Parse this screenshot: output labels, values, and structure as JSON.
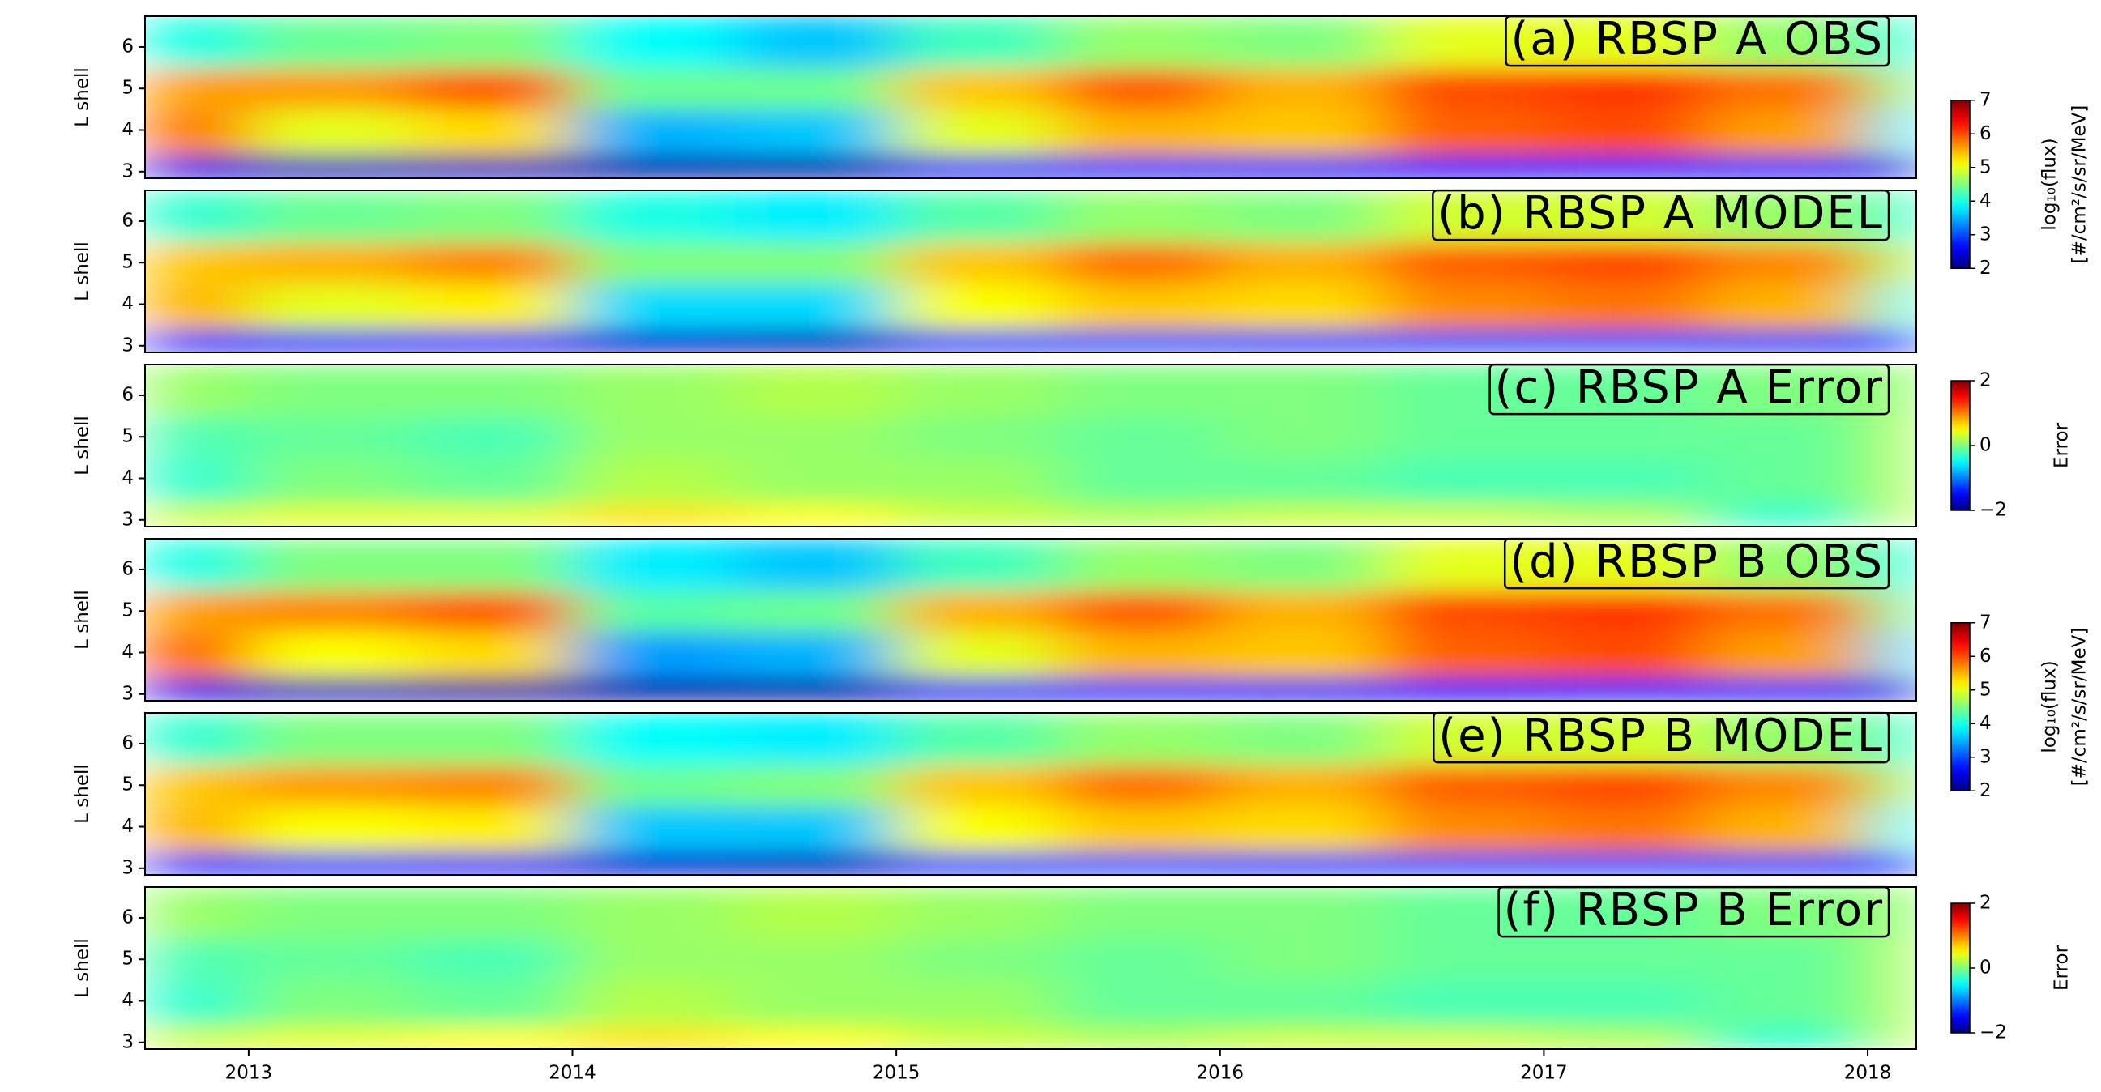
{
  "chart_data": [
    {
      "type": "heatmap",
      "title": "(a) RBSP A OBS",
      "ylabel": "L shell",
      "cmap": "jet",
      "colorbar": 0,
      "xlim": [
        2012.68,
        2018.15
      ],
      "ylim": [
        2.84,
        6.74
      ],
      "yticks": [
        3,
        4,
        5,
        6
      ],
      "xbins": [
        2012.68,
        2013,
        2013.5,
        2014,
        2014.5,
        2015,
        2015.5,
        2016,
        2016.5,
        2017,
        2017.5,
        2018,
        2018.15
      ],
      "ybins": [
        2.84,
        3.4,
        4.5,
        5.5,
        6.74
      ],
      "z": [
        [
          2.5,
          2.3,
          2.3,
          2.2,
          2.2,
          2.6,
          2.8,
          2.6,
          2.7,
          2.8,
          2.7,
          2.4
        ],
        [
          5.8,
          5.0,
          5.3,
          3.5,
          3.6,
          5.0,
          5.5,
          5.4,
          5.9,
          6.0,
          5.6,
          3.8
        ],
        [
          5.6,
          5.6,
          5.9,
          4.4,
          4.4,
          5.4,
          5.9,
          5.5,
          6.0,
          6.1,
          5.8,
          4.4
        ],
        [
          4.0,
          4.4,
          4.5,
          3.9,
          3.6,
          4.2,
          4.6,
          4.5,
          5.0,
          5.0,
          4.6,
          4.0
        ]
      ]
    },
    {
      "type": "heatmap",
      "title": "(b) RBSP A MODEL",
      "ylabel": "L shell",
      "cmap": "jet",
      "colorbar": 0,
      "xlim": [
        2012.68,
        2018.15
      ],
      "ylim": [
        2.84,
        6.74
      ],
      "yticks": [
        3,
        4,
        5,
        6
      ],
      "xbins": [
        2012.68,
        2013,
        2013.5,
        2014,
        2014.5,
        2015,
        2015.5,
        2016,
        2016.5,
        2017,
        2017.5,
        2018,
        2018.15
      ],
      "ybins": [
        2.84,
        3.4,
        4.5,
        5.5,
        6.74
      ],
      "z": [
        [
          2.8,
          2.7,
          2.7,
          2.4,
          2.3,
          2.9,
          3.0,
          2.9,
          3.0,
          3.0,
          2.9,
          2.7
        ],
        [
          5.5,
          5.0,
          5.2,
          3.7,
          3.7,
          5.1,
          5.4,
          5.3,
          5.7,
          5.8,
          5.5,
          4.0
        ],
        [
          5.4,
          5.5,
          5.7,
          4.5,
          4.5,
          5.4,
          5.8,
          5.5,
          5.9,
          6.0,
          5.7,
          4.6
        ],
        [
          4.1,
          4.4,
          4.5,
          4.0,
          3.8,
          4.3,
          4.6,
          4.5,
          4.9,
          4.9,
          4.6,
          4.1
        ]
      ]
    },
    {
      "type": "heatmap",
      "title": "(c) RBSP A Error",
      "ylabel": "L shell",
      "cmap": "jet",
      "colorbar": 1,
      "xlim": [
        2012.68,
        2018.15
      ],
      "ylim": [
        2.84,
        6.74
      ],
      "yticks": [
        3,
        4,
        5,
        6
      ],
      "xbins": [
        2012.68,
        2013,
        2013.5,
        2014,
        2014.5,
        2015,
        2015.5,
        2016,
        2016.5,
        2017,
        2017.5,
        2018,
        2018.15
      ],
      "ybins": [
        2.84,
        3.4,
        4.5,
        5.5,
        6.74
      ],
      "z": [
        [
          0.3,
          0.4,
          0.4,
          0.6,
          0.5,
          0.3,
          0.2,
          0.3,
          0.3,
          0.2,
          -0.3,
          0.3
        ],
        [
          -0.3,
          0.0,
          -0.1,
          0.2,
          0.1,
          0.1,
          -0.1,
          -0.1,
          -0.2,
          -0.2,
          -0.1,
          0.2
        ],
        [
          -0.2,
          -0.1,
          -0.2,
          0.1,
          0.1,
          0.0,
          -0.1,
          0.0,
          -0.1,
          -0.1,
          -0.1,
          0.2
        ],
        [
          0.1,
          0.0,
          0.0,
          0.1,
          0.2,
          0.1,
          0.0,
          0.0,
          -0.1,
          -0.1,
          0.0,
          0.1
        ]
      ]
    },
    {
      "type": "heatmap",
      "title": "(d) RBSP B OBS",
      "ylabel": "L shell",
      "cmap": "jet",
      "colorbar": 2,
      "xlim": [
        2012.68,
        2018.15
      ],
      "ylim": [
        2.84,
        6.74
      ],
      "yticks": [
        3,
        4,
        5,
        6
      ],
      "xbins": [
        2012.68,
        2013,
        2013.5,
        2014,
        2014.5,
        2015,
        2015.5,
        2016,
        2016.5,
        2017,
        2017.5,
        2018,
        2018.15
      ],
      "ybins": [
        2.84,
        3.4,
        4.5,
        5.5,
        6.74
      ],
      "z": [
        [
          2.5,
          2.3,
          2.2,
          2.2,
          2.2,
          2.6,
          2.8,
          2.6,
          2.7,
          2.8,
          2.7,
          2.4
        ],
        [
          5.9,
          5.1,
          5.3,
          3.4,
          3.5,
          5.0,
          5.5,
          5.4,
          5.9,
          6.0,
          5.6,
          3.7
        ],
        [
          5.6,
          5.7,
          5.9,
          4.3,
          4.4,
          5.5,
          5.9,
          5.5,
          6.0,
          6.1,
          5.8,
          4.3
        ],
        [
          4.0,
          4.5,
          4.5,
          3.8,
          3.6,
          4.2,
          4.6,
          4.5,
          5.0,
          5.0,
          4.6,
          4.0
        ]
      ]
    },
    {
      "type": "heatmap",
      "title": "(e) RBSP B MODEL",
      "ylabel": "L shell",
      "cmap": "jet",
      "colorbar": 2,
      "xlim": [
        2012.68,
        2018.15
      ],
      "ylim": [
        2.84,
        6.74
      ],
      "yticks": [
        3,
        4,
        5,
        6
      ],
      "xbins": [
        2012.68,
        2013,
        2013.5,
        2014,
        2014.5,
        2015,
        2015.5,
        2016,
        2016.5,
        2017,
        2017.5,
        2018,
        2018.15
      ],
      "ybins": [
        2.84,
        3.4,
        4.5,
        5.5,
        6.74
      ],
      "z": [
        [
          2.8,
          2.7,
          2.6,
          2.4,
          2.3,
          2.9,
          3.0,
          2.9,
          3.0,
          3.0,
          2.9,
          2.7
        ],
        [
          5.5,
          5.1,
          5.2,
          3.6,
          3.6,
          5.1,
          5.4,
          5.3,
          5.7,
          5.8,
          5.5,
          3.9
        ],
        [
          5.4,
          5.6,
          5.7,
          4.4,
          4.5,
          5.4,
          5.8,
          5.5,
          5.9,
          6.0,
          5.7,
          4.5
        ],
        [
          4.1,
          4.5,
          4.5,
          3.9,
          3.8,
          4.3,
          4.6,
          4.5,
          4.9,
          4.9,
          4.6,
          4.1
        ]
      ]
    },
    {
      "type": "heatmap",
      "title": "(f) RBSP B Error",
      "ylabel": "L shell",
      "cmap": "jet",
      "colorbar": 3,
      "xlim": [
        2012.68,
        2018.15
      ],
      "ylim": [
        2.84,
        6.74
      ],
      "yticks": [
        3,
        4,
        5,
        6
      ],
      "xticks": [
        2013,
        2014,
        2015,
        2016,
        2017,
        2018
      ],
      "xbins": [
        2012.68,
        2013,
        2013.5,
        2014,
        2014.5,
        2015,
        2015.5,
        2016,
        2016.5,
        2017,
        2017.5,
        2018,
        2018.15
      ],
      "ybins": [
        2.84,
        3.4,
        4.5,
        5.5,
        6.74
      ],
      "z": [
        [
          0.3,
          0.4,
          0.5,
          0.6,
          0.5,
          0.3,
          0.2,
          0.3,
          0.3,
          0.2,
          -0.3,
          0.3
        ],
        [
          -0.3,
          0.0,
          -0.1,
          0.2,
          0.1,
          0.1,
          -0.1,
          -0.1,
          -0.2,
          -0.2,
          -0.1,
          0.2
        ],
        [
          -0.2,
          -0.1,
          -0.2,
          0.1,
          0.1,
          0.0,
          -0.1,
          0.0,
          -0.1,
          -0.1,
          -0.1,
          0.2
        ],
        [
          0.1,
          0.0,
          0.0,
          0.1,
          0.2,
          0.1,
          0.0,
          0.0,
          -0.1,
          -0.1,
          0.0,
          0.1
        ]
      ]
    }
  ],
  "colorbars": [
    {
      "clim": [
        2,
        7
      ],
      "cticks": [
        2,
        3,
        4,
        5,
        6,
        7
      ],
      "label": "log₁₀(flux)",
      "units": "[#/cm²/s/sr/MeV]"
    },
    {
      "clim": [
        -2,
        2
      ],
      "cticks": [
        {
          "value": -2,
          "label": "−2"
        },
        0,
        2
      ],
      "label": "Error"
    },
    {
      "clim": [
        2,
        7
      ],
      "cticks": [
        2,
        3,
        4,
        5,
        6,
        7
      ],
      "label": "log₁₀(flux)",
      "units": "[#/cm²/s/sr/MeV]"
    },
    {
      "clim": [
        -2,
        2
      ],
      "cticks": [
        {
          "value": -2,
          "label": "−2"
        },
        0,
        2
      ],
      "label": "Error"
    }
  ]
}
